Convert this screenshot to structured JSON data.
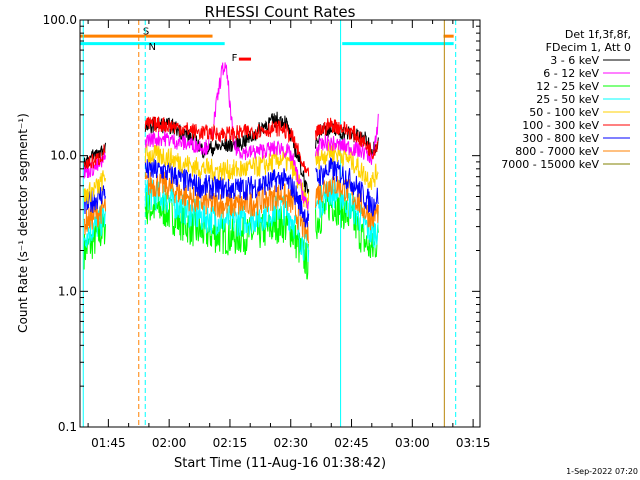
{
  "chart_data": {
    "type": "line",
    "title": "RHESSI Count Rates",
    "xlabel": "Start Time (11-Aug-16 01:38:42)",
    "ylabel": "Count Rate (s⁻¹ detector segment⁻¹)",
    "y_scale": "log",
    "ylim": [
      0.1,
      100.0
    ],
    "y_ticks": [
      0.1,
      1.0,
      10.0,
      100.0
    ],
    "y_tick_labels": [
      "0.1",
      "1.0",
      "10.0",
      "100.0"
    ],
    "x_range_minutes": [
      -0.7,
      98
    ],
    "x_ticks": [
      6.3,
      21.3,
      36.3,
      51.3,
      66.3,
      81.3,
      96.3
    ],
    "x_tick_labels": [
      "01:45",
      "02:00",
      "02:15",
      "02:30",
      "02:45",
      "03:00",
      "03:15"
    ],
    "legend_header": [
      "Det 1f,3f,8f,",
      "FDecim 1, Att 0"
    ],
    "legend_placement": "top-right",
    "timestamp": "1-Sep-2022 07:20",
    "series": [
      {
        "name": "3 - 6 keV",
        "color": "#000000",
        "points": [
          [
            0.3,
            9.0
          ],
          [
            4,
            10.5
          ],
          [
            5.5,
            11.5
          ],
          [
            15,
            16
          ],
          [
            18,
            17
          ],
          [
            22,
            16.5
          ],
          [
            26,
            14
          ],
          [
            28,
            12.5
          ],
          [
            29.5,
            11
          ],
          [
            33,
            11.5
          ],
          [
            36,
            12
          ],
          [
            39,
            12.5
          ],
          [
            42,
            14
          ],
          [
            45,
            17
          ],
          [
            48,
            18.5
          ],
          [
            50,
            18
          ],
          [
            51.5,
            13
          ],
          [
            53,
            10
          ],
          [
            54.5,
            7
          ],
          [
            55.5,
            5
          ],
          [
            57.5,
            13
          ],
          [
            59,
            16
          ],
          [
            63,
            15
          ],
          [
            66,
            14.5
          ],
          [
            70,
            13
          ],
          [
            71.5,
            11
          ],
          [
            73,
            13
          ]
        ]
      },
      {
        "name": "6 - 12 keV",
        "color": "#ff00ff",
        "points": [
          [
            0.3,
            7.5
          ],
          [
            4,
            8.5
          ],
          [
            5.5,
            9.5
          ],
          [
            15,
            13
          ],
          [
            20,
            13.5
          ],
          [
            24,
            12.5
          ],
          [
            28,
            12
          ],
          [
            30.5,
            11.5
          ],
          [
            31.2,
            13
          ],
          [
            32,
            15
          ],
          [
            32.8,
            22
          ],
          [
            33.5,
            30
          ],
          [
            34.3,
            42
          ],
          [
            35,
            45
          ],
          [
            35.7,
            38
          ],
          [
            36.5,
            20
          ],
          [
            37.3,
            12
          ],
          [
            38,
            11
          ],
          [
            41,
            10.5
          ],
          [
            45,
            11
          ],
          [
            49,
            11.5
          ],
          [
            51.5,
            10
          ],
          [
            53,
            7
          ],
          [
            54.5,
            5
          ],
          [
            55.5,
            4
          ],
          [
            57.5,
            11
          ],
          [
            60,
            12.5
          ],
          [
            63,
            12
          ],
          [
            66,
            11.5
          ],
          [
            70,
            10.5
          ],
          [
            71.5,
            9.5
          ],
          [
            72.5,
            14
          ],
          [
            73,
            22
          ]
        ]
      },
      {
        "name": "12 - 25 keV",
        "color": "#00ff00",
        "points": [
          [
            0.3,
            2.0
          ],
          [
            4,
            2.6
          ],
          [
            5.5,
            3.0
          ],
          [
            15,
            4.2
          ],
          [
            20,
            4.0
          ],
          [
            24,
            3.3
          ],
          [
            28,
            2.8
          ],
          [
            33,
            2.6
          ],
          [
            37,
            2.5
          ],
          [
            41,
            2.6
          ],
          [
            45,
            2.8
          ],
          [
            49,
            3.2
          ],
          [
            51.5,
            2.8
          ],
          [
            53,
            2.2
          ],
          [
            54.5,
            1.8
          ],
          [
            55.5,
            1.6
          ],
          [
            57.5,
            3.2
          ],
          [
            61,
            4.5
          ],
          [
            64,
            4.0
          ],
          [
            67,
            3.2
          ],
          [
            70,
            2.2
          ],
          [
            71.5,
            2.0
          ],
          [
            73,
            2.5
          ]
        ]
      },
      {
        "name": "25 - 50 keV",
        "color": "#00ffff",
        "points": [
          [
            0.3,
            2.6
          ],
          [
            4,
            3.2
          ],
          [
            5.5,
            3.5
          ],
          [
            15,
            5.2
          ],
          [
            20,
            5.0
          ],
          [
            24,
            4.2
          ],
          [
            28,
            3.6
          ],
          [
            33,
            3.4
          ],
          [
            37,
            3.3
          ],
          [
            41,
            3.4
          ],
          [
            45,
            3.7
          ],
          [
            49,
            4.2
          ],
          [
            51.5,
            3.5
          ],
          [
            53,
            2.8
          ],
          [
            54.5,
            2.2
          ],
          [
            55.5,
            2.0
          ],
          [
            57.5,
            4.2
          ],
          [
            61,
            5.5
          ],
          [
            64,
            5.0
          ],
          [
            67,
            4.0
          ],
          [
            70,
            3.0
          ],
          [
            71.5,
            2.6
          ],
          [
            73,
            3.0
          ]
        ]
      },
      {
        "name": "50 - 100 keV",
        "color": "#ffd200",
        "points": [
          [
            0.3,
            5.0
          ],
          [
            4,
            6.0
          ],
          [
            5.5,
            7.0
          ],
          [
            15,
            10.2
          ],
          [
            20,
            10.0
          ],
          [
            24,
            9.0
          ],
          [
            28,
            8.2
          ],
          [
            33,
            7.8
          ],
          [
            37,
            7.8
          ],
          [
            41,
            8.0
          ],
          [
            45,
            8.5
          ],
          [
            49,
            9.5
          ],
          [
            51.5,
            8.5
          ],
          [
            53,
            6.5
          ],
          [
            54.5,
            5.0
          ],
          [
            55.5,
            4.5
          ],
          [
            57.5,
            9.2
          ],
          [
            61,
            10.8
          ],
          [
            64,
            10.2
          ],
          [
            67,
            8.8
          ],
          [
            70,
            7.0
          ],
          [
            71.5,
            6.5
          ],
          [
            73,
            8.0
          ]
        ]
      },
      {
        "name": "100 - 300 keV",
        "color": "#ff0000",
        "points": [
          [
            0.3,
            8.5
          ],
          [
            4,
            9.5
          ],
          [
            5.5,
            11
          ],
          [
            15,
            17
          ],
          [
            20,
            17
          ],
          [
            24,
            16
          ],
          [
            28,
            15
          ],
          [
            33,
            14.5
          ],
          [
            37,
            14.5
          ],
          [
            41,
            15
          ],
          [
            45,
            15.5
          ],
          [
            49,
            16
          ],
          [
            51.5,
            14
          ],
          [
            53,
            11
          ],
          [
            54.5,
            8
          ],
          [
            55.5,
            7
          ],
          [
            57.5,
            14.5
          ],
          [
            61,
            17
          ],
          [
            64,
            16
          ],
          [
            67,
            14.5
          ],
          [
            70,
            12
          ],
          [
            71.5,
            10.5
          ],
          [
            73,
            13
          ]
        ]
      },
      {
        "name": "300 - 800 keV",
        "color": "#0000ff",
        "points": [
          [
            0.3,
            4.2
          ],
          [
            4,
            5.0
          ],
          [
            5.5,
            5.5
          ],
          [
            15,
            7.8
          ],
          [
            20,
            7.8
          ],
          [
            24,
            6.8
          ],
          [
            28,
            6.0
          ],
          [
            33,
            5.8
          ],
          [
            37,
            5.7
          ],
          [
            41,
            5.8
          ],
          [
            45,
            6.2
          ],
          [
            49,
            6.8
          ],
          [
            51.5,
            6.0
          ],
          [
            53,
            4.8
          ],
          [
            54.5,
            3.8
          ],
          [
            55.5,
            3.4
          ],
          [
            57.5,
            6.8
          ],
          [
            61,
            8.0
          ],
          [
            64,
            7.4
          ],
          [
            67,
            6.2
          ],
          [
            70,
            4.8
          ],
          [
            71.5,
            4.3
          ],
          [
            73,
            5.2
          ]
        ]
      },
      {
        "name": "800 - 7000 keV",
        "color": "#ff8000",
        "points": [
          [
            0.3,
            3.2
          ],
          [
            4,
            3.8
          ],
          [
            5.5,
            4.2
          ],
          [
            15,
            6.2
          ],
          [
            20,
            6.1
          ],
          [
            24,
            5.3
          ],
          [
            28,
            4.6
          ],
          [
            33,
            4.4
          ],
          [
            37,
            4.3
          ],
          [
            41,
            4.4
          ],
          [
            45,
            4.7
          ],
          [
            49,
            5.2
          ],
          [
            51.5,
            4.5
          ],
          [
            53,
            3.6
          ],
          [
            54.5,
            2.9
          ],
          [
            55.5,
            2.6
          ],
          [
            57.5,
            5.2
          ],
          [
            61,
            6.3
          ],
          [
            64,
            5.9
          ],
          [
            67,
            5.0
          ],
          [
            70,
            3.8
          ],
          [
            71.5,
            3.4
          ],
          [
            73,
            4.0
          ]
        ]
      },
      {
        "name": "7000 - 15000 keV",
        "color": "#808000",
        "points": []
      }
    ],
    "annotations": [
      {
        "label": "S",
        "color": "#ff8000"
      },
      {
        "label": "N",
        "color": "#00ffff"
      },
      {
        "label": "F",
        "color": "#ff0000"
      }
    ]
  }
}
